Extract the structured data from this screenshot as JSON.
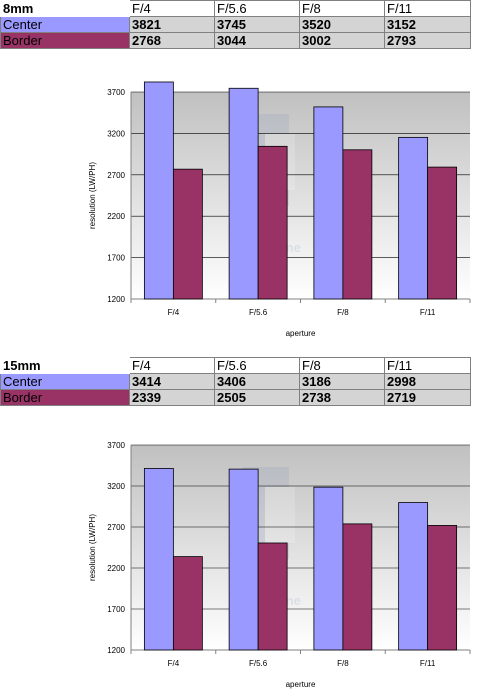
{
  "colors": {
    "center": "#9999ff",
    "border": "#993366",
    "plot_top": "#c0c0c0",
    "plot_bottom": "#ffffff",
    "gridline": "#000000"
  },
  "watermark": "photozone",
  "sections": [
    {
      "title": "8mm",
      "columns": [
        "F/4",
        "F/5.6",
        "F/8",
        "F/11"
      ],
      "rows": [
        {
          "label": "Center",
          "values": [
            "3821",
            "3745",
            "3520",
            "3152"
          ]
        },
        {
          "label": "Border",
          "values": [
            "2768",
            "3044",
            "3002",
            "2793"
          ]
        }
      ]
    },
    {
      "title": "15mm",
      "columns": [
        "F/4",
        "F/5.6",
        "F/8",
        "F/11"
      ],
      "rows": [
        {
          "label": "Center",
          "values": [
            "3414",
            "3406",
            "3186",
            "2998"
          ]
        },
        {
          "label": "Border",
          "values": [
            "2339",
            "2505",
            "2738",
            "2719"
          ]
        }
      ]
    }
  ],
  "chart_data": [
    {
      "type": "bar",
      "categories": [
        "F/4",
        "F/5.6",
        "F/8",
        "F/11"
      ],
      "series": [
        {
          "name": "Center",
          "values": [
            3821,
            3745,
            3520,
            3152
          ]
        },
        {
          "name": "Border",
          "values": [
            2768,
            3044,
            3002,
            2793
          ]
        }
      ],
      "title": "",
      "xlabel": "aperture",
      "ylabel": "resolution (LW/PH)",
      "ylim": [
        1200,
        3700
      ],
      "yticks": [
        "3700",
        "3200",
        "2700",
        "2200",
        "1700",
        "1200"
      ],
      "grid": true,
      "legend": "none"
    },
    {
      "type": "bar",
      "categories": [
        "F/4",
        "F/5.6",
        "F/8",
        "F/11"
      ],
      "series": [
        {
          "name": "Center",
          "values": [
            3414,
            3406,
            3186,
            2998
          ]
        },
        {
          "name": "Border",
          "values": [
            2339,
            2505,
            2738,
            2719
          ]
        }
      ],
      "title": "",
      "xlabel": "aperture",
      "ylabel": "resolution (LW/PH)",
      "ylim": [
        1200,
        3700
      ],
      "yticks": [
        "3700",
        "3200",
        "2700",
        "2200",
        "1700",
        "1200"
      ],
      "grid": true,
      "legend": "none"
    }
  ]
}
